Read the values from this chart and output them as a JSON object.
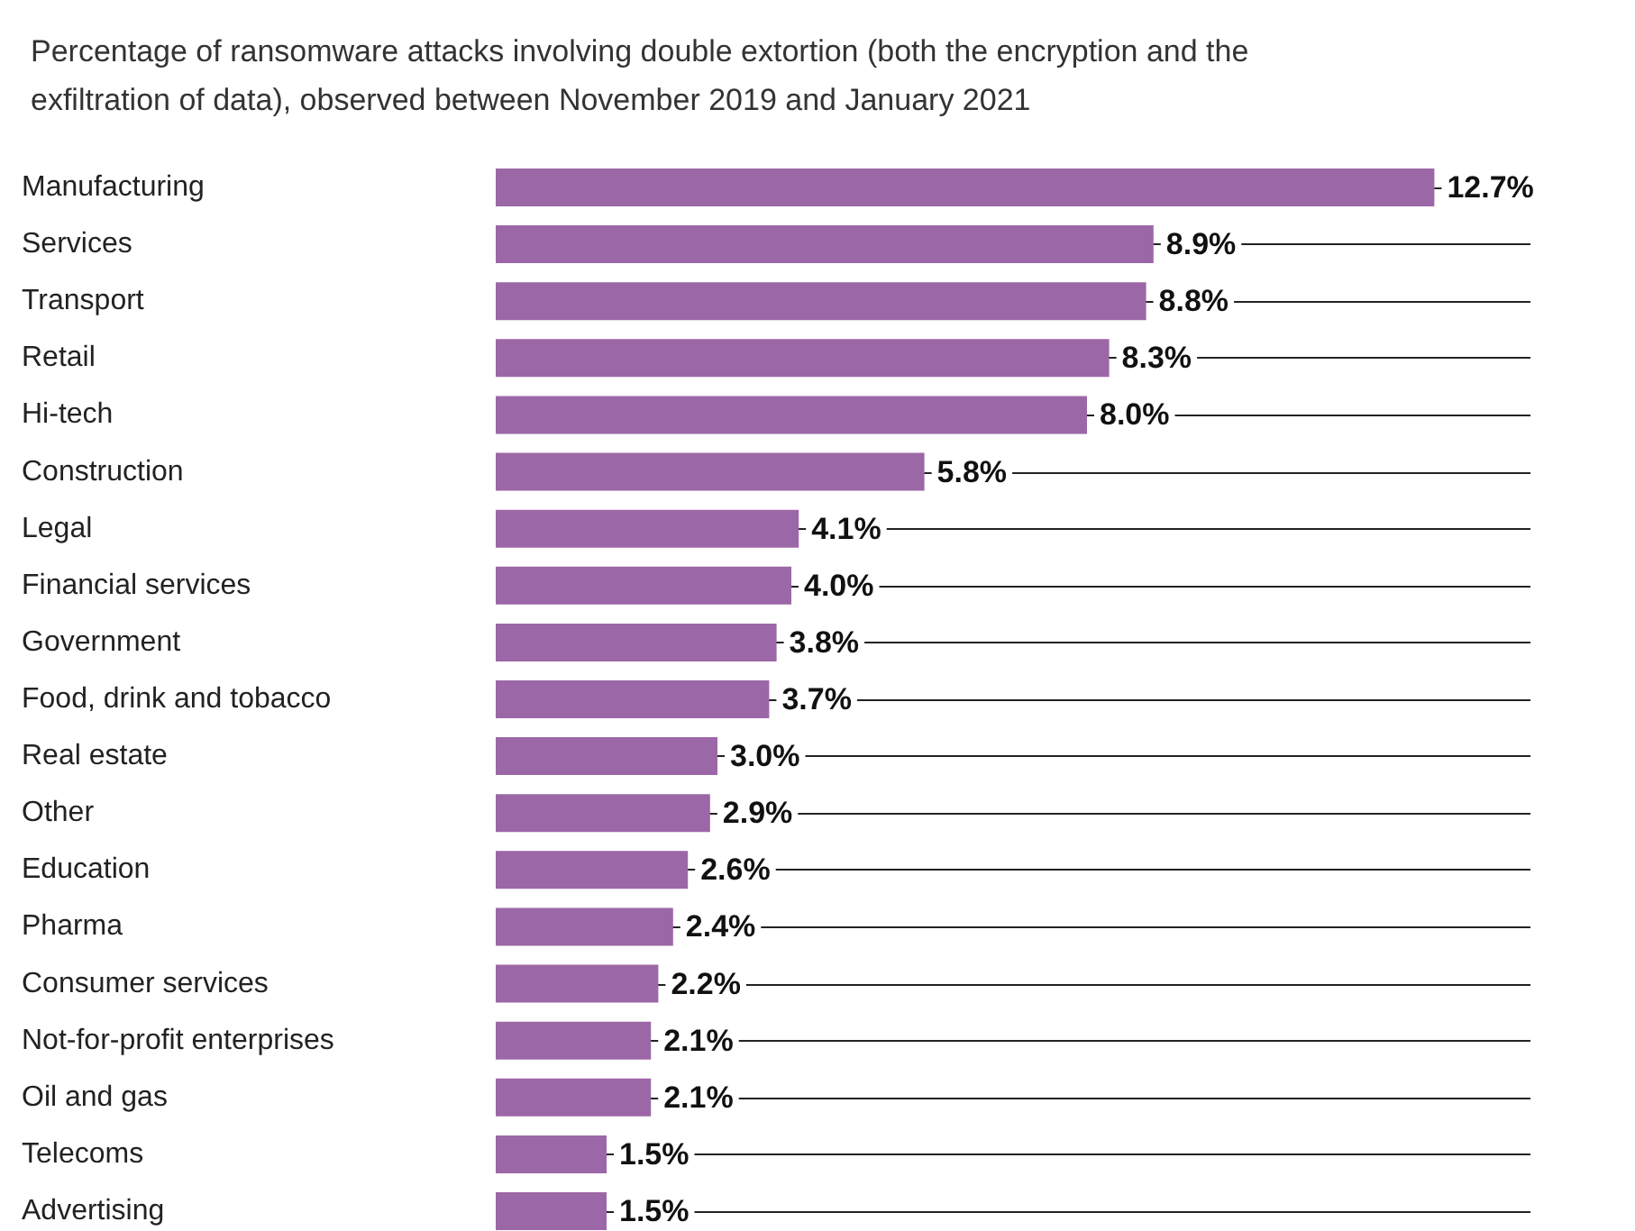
{
  "chart_data": {
    "type": "bar",
    "orientation": "horizontal",
    "title": "Percentage of ransomware attacks involving double extortion (both the encryption and the\nexfiltration of data), observed between November 2019 and January 2021",
    "categories": [
      "Manufacturing",
      "Services",
      "Transport",
      "Retail",
      "Hi-tech",
      "Construction",
      "Legal",
      "Financial services",
      "Government",
      "Food, drink and tobacco",
      "Real estate",
      "Other",
      "Education",
      "Pharma",
      "Consumer services",
      "Not-for-profit enterprises",
      "Oil and gas",
      "Telecoms",
      "Advertising"
    ],
    "values": [
      12.7,
      8.9,
      8.8,
      8.3,
      8.0,
      5.8,
      4.1,
      4.0,
      3.8,
      3.7,
      3.0,
      2.9,
      2.6,
      2.4,
      2.2,
      2.1,
      2.1,
      1.5,
      1.5
    ],
    "value_labels": [
      "12.7%",
      "8.9%",
      "8.8%",
      "8.3%",
      "8.0%",
      "5.8%",
      "4.1%",
      "4.0%",
      "3.8%",
      "3.7%",
      "3.0%",
      "2.9%",
      "2.6%",
      "2.4%",
      "2.2%",
      "2.1%",
      "2.1%",
      "1.5%",
      "1.5%"
    ],
    "color": "#9c67a6",
    "xlim": [
      0,
      14
    ],
    "grid": "y",
    "tick_labels": "y"
  }
}
